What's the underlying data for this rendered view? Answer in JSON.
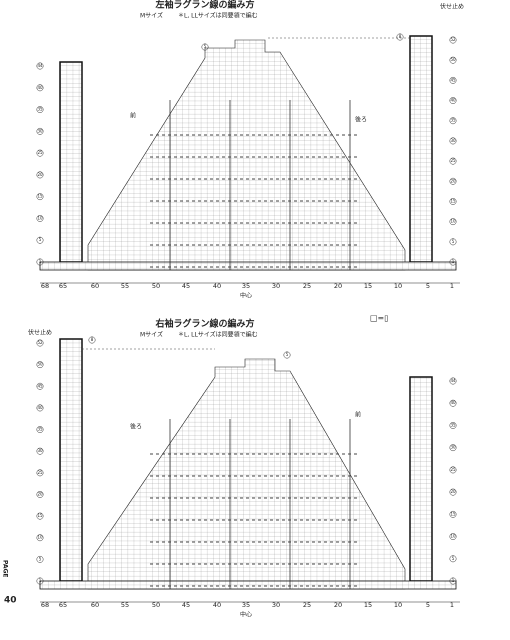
{
  "charts": [
    {
      "title": "左袖ラグラン線の編み方",
      "size_note": "Mサイズ",
      "other_sizes_note": "＊L, LLサイズは同要領で編む",
      "left_label": "前",
      "right_label": "後ろ",
      "center_label": "中心",
      "bind_off_label": "伏せ止め",
      "stitch_numbers": [
        "68",
        "65",
        "60",
        "55",
        "50",
        "45",
        "40",
        "35",
        "30",
        "25",
        "20",
        "15",
        "10",
        "5",
        "1"
      ],
      "left_rows": [
        "44",
        "40",
        "35",
        "30",
        "25",
        "20",
        "15",
        "10",
        "5",
        "1"
      ],
      "right_rows": [
        "52",
        "50",
        "45",
        "40",
        "35",
        "30",
        "25",
        "20",
        "15",
        "10",
        "5",
        "1"
      ],
      "markers": [
        "5",
        "8"
      ]
    },
    {
      "title": "右袖ラグラン線の編み方",
      "size_note": "Mサイズ",
      "other_sizes_note": "＊L, LLサイズは同要領で編む",
      "left_label": "後ろ",
      "right_label": "前",
      "center_label": "中心",
      "bind_off_label": "伏せ止め",
      "stitch_numbers": [
        "68",
        "65",
        "60",
        "55",
        "50",
        "45",
        "40",
        "35",
        "30",
        "25",
        "20",
        "15",
        "10",
        "5",
        "1"
      ],
      "left_rows": [
        "52",
        "50",
        "45",
        "40",
        "35",
        "30",
        "25",
        "20",
        "15",
        "10",
        "5",
        "1"
      ],
      "right_rows": [
        "44",
        "40",
        "35",
        "30",
        "25",
        "20",
        "15",
        "10",
        "5",
        "1"
      ],
      "markers": [
        "8",
        "5"
      ]
    }
  ],
  "legend": "□=▯",
  "page": {
    "label": "PAGE",
    "number": "40"
  }
}
